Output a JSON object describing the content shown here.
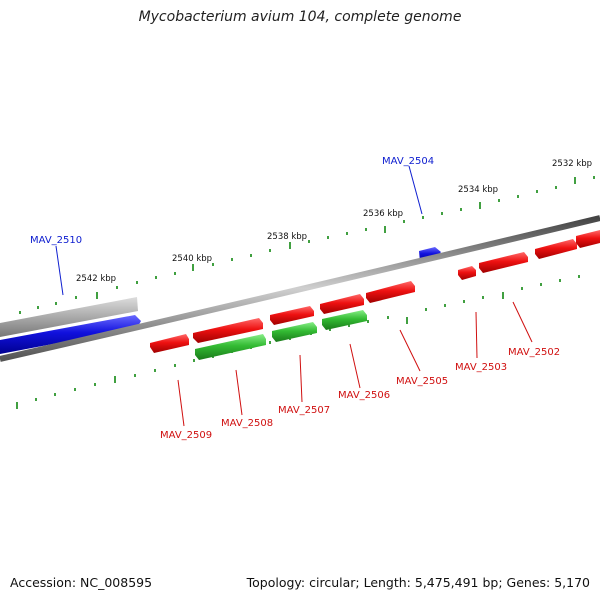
{
  "title": "Mycobacterium avium 104, complete genome",
  "footer": {
    "accession": "Accession: NC_008595",
    "summary": "Topology: circular; Length: 5,475,491 bp; Genes: 5,170"
  },
  "colors": {
    "forward_gene": "#ee1111",
    "reverse_gene": "#1111dd",
    "rna_gene": "#33bb33",
    "pseudo_gene": "#aaaaaa",
    "backbone": "#777777",
    "tick": "#118811",
    "label_forward": "#d01010",
    "label_reverse": "#1020d0"
  },
  "scale_labels": [
    "2532 kbp",
    "2534 kbp",
    "2536 kbp",
    "2538 kbp",
    "2540 kbp",
    "2542 kbp"
  ],
  "genes": [
    {
      "label": "MAV_2502",
      "strand": "+"
    },
    {
      "label": "MAV_2503",
      "strand": "+"
    },
    {
      "label": "MAV_2504",
      "strand": "-"
    },
    {
      "label": "MAV_2505",
      "strand": "+"
    },
    {
      "label": "MAV_2506",
      "strand": "+"
    },
    {
      "label": "MAV_2507",
      "strand": "+"
    },
    {
      "label": "MAV_2508",
      "strand": "+"
    },
    {
      "label": "MAV_2509",
      "strand": "+"
    },
    {
      "label": "MAV_2510",
      "strand": "-"
    }
  ]
}
